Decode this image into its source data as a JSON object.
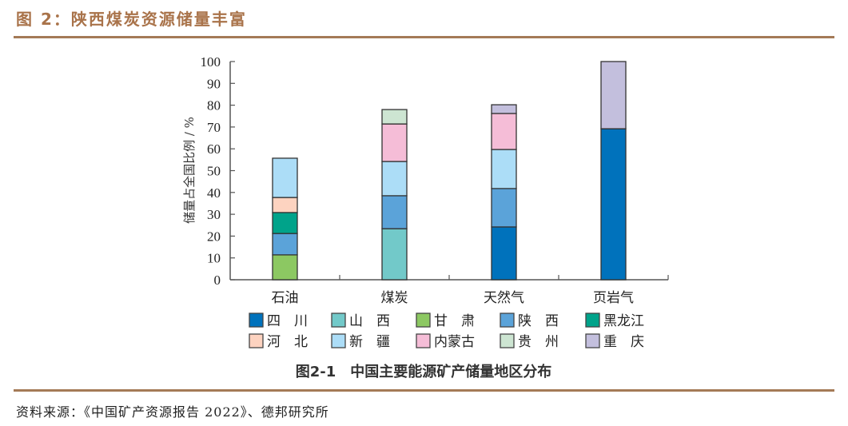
{
  "header": {
    "title": "图 2：陕西煤炭资源储量丰富"
  },
  "footer": {
    "source": "资料来源：《中国矿产资源报告 2022》、德邦研究所"
  },
  "colors": {
    "accent_brown": "#A9734A"
  },
  "chart_data": {
    "type": "bar",
    "stacked": true,
    "title": "图2-1　中国主要能源矿产储量地区分布",
    "xlabel": "",
    "ylabel": "储量占全国比例 / %",
    "ylim": [
      0,
      100
    ],
    "yticks": [
      0,
      10,
      20,
      30,
      40,
      50,
      60,
      70,
      80,
      90,
      100
    ],
    "grid": false,
    "legend_position": "bottom",
    "categories": [
      "石油",
      "煤炭",
      "天然气",
      "页岩气"
    ],
    "series": [
      {
        "name": "四　川",
        "color": "#0072BC",
        "values": [
          0,
          0,
          24.2,
          69.2
        ]
      },
      {
        "name": "山　西",
        "color": "#72C9C9",
        "values": [
          0,
          23.4,
          0,
          0
        ]
      },
      {
        "name": "甘　肃",
        "color": "#8CC862",
        "values": [
          11.4,
          0,
          0,
          0
        ]
      },
      {
        "name": "陕　西",
        "color": "#5BA3D9",
        "values": [
          9.8,
          15.1,
          17.6,
          0
        ]
      },
      {
        "name": "黑龙江",
        "color": "#00A38A",
        "values": [
          9.6,
          0,
          0,
          0
        ]
      },
      {
        "name": "河　北",
        "color": "#FDD3C0",
        "values": [
          6.9,
          0,
          0,
          0
        ]
      },
      {
        "name": "新　疆",
        "color": "#ACDDF7",
        "values": [
          18.0,
          15.7,
          17.9,
          0
        ]
      },
      {
        "name": "内蒙古",
        "color": "#F5BDD7",
        "values": [
          0,
          17.2,
          16.5,
          0
        ]
      },
      {
        "name": "贵　州",
        "color": "#CDE5D2",
        "values": [
          0,
          6.6,
          0,
          0
        ]
      },
      {
        "name": "重　庆",
        "color": "#C3BFDD",
        "values": [
          0,
          0,
          4.0,
          30.8
        ]
      }
    ]
  }
}
